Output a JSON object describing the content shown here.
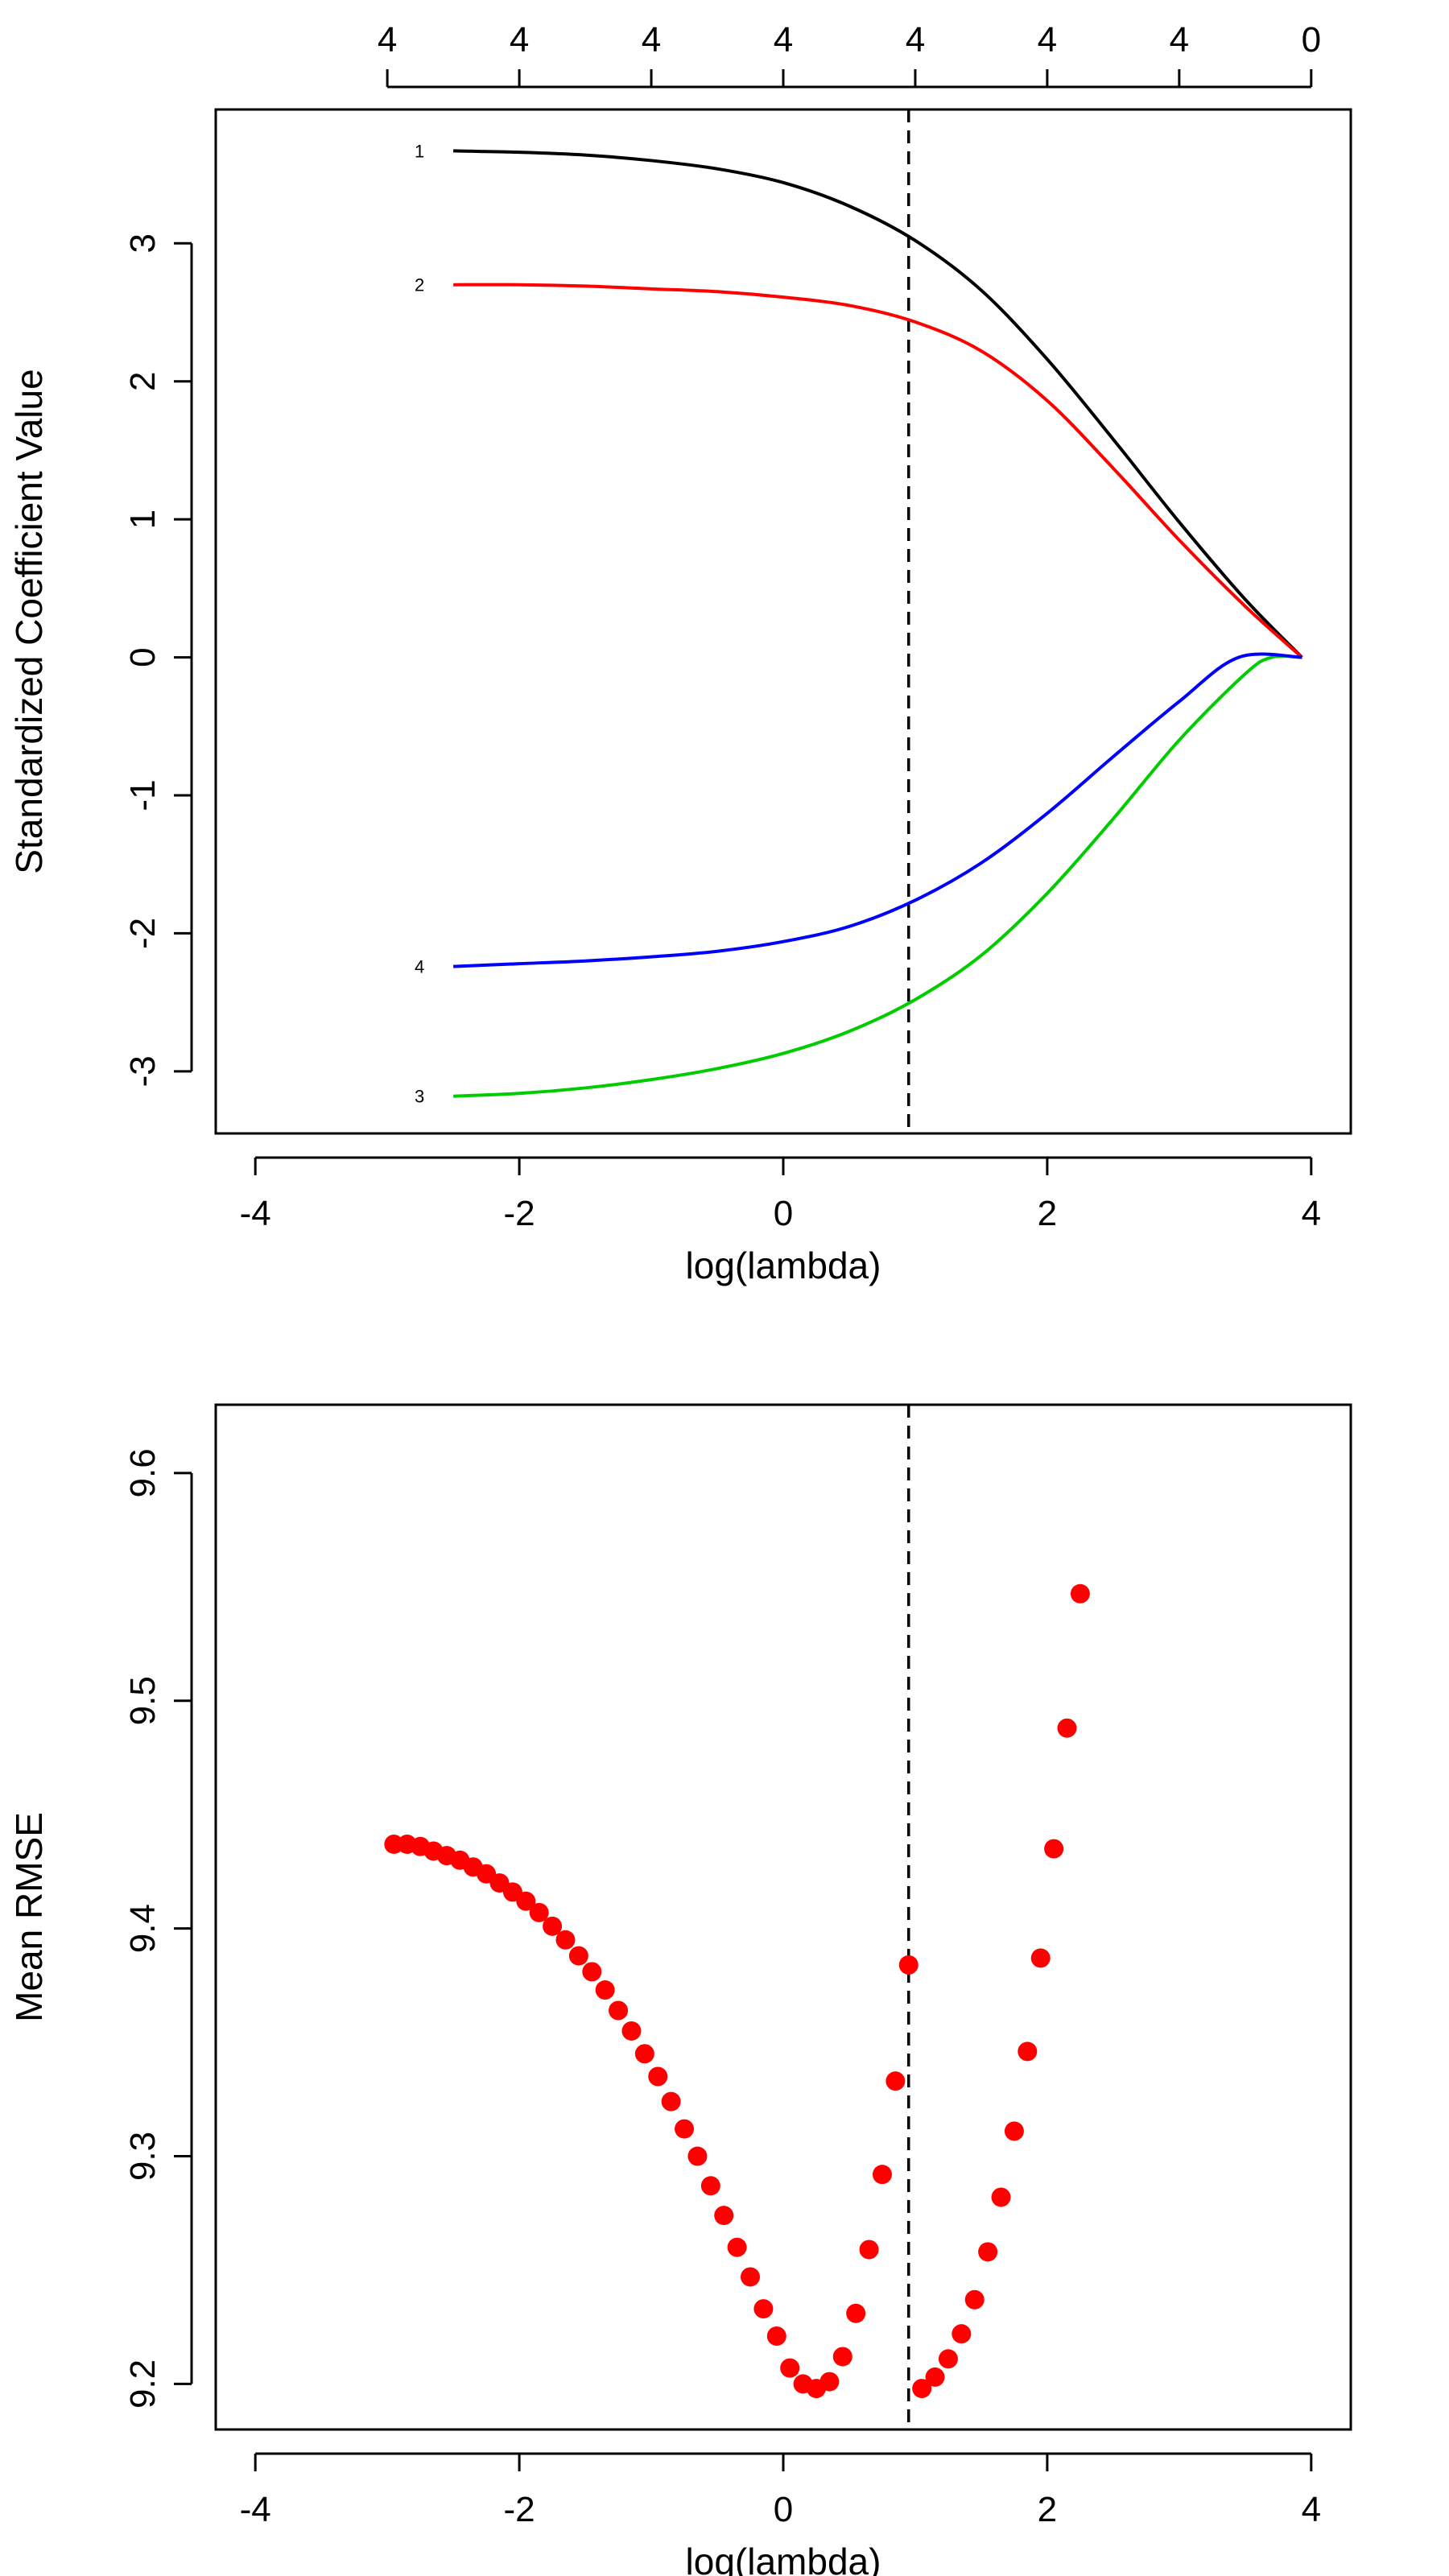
{
  "chart_data": [
    {
      "type": "line",
      "xlabel": "log(lambda)",
      "ylabel": "Standardized Coefficient Value",
      "xlim": [
        -4.3,
        4.3
      ],
      "ylim": [
        -3.45,
        3.97
      ],
      "xticks": [
        -4,
        -2,
        0,
        2,
        4
      ],
      "xtick_labels": [
        "-4",
        "-2",
        "0",
        "2",
        "4"
      ],
      "yticks": [
        -3,
        -2,
        -1,
        0,
        1,
        2,
        3
      ],
      "ytick_labels": [
        "-3",
        "-2",
        "-1",
        "0",
        "1",
        "2",
        "3"
      ],
      "top_axis": {
        "positions": [
          -3,
          -2,
          -1,
          0,
          1,
          2,
          3,
          4
        ],
        "labels": [
          "4",
          "4",
          "4",
          "4",
          "4",
          "4",
          "4",
          "0"
        ]
      },
      "vline": 0.95,
      "grid": false,
      "legend": "none",
      "series": [
        {
          "name": "1",
          "color": "#000000",
          "x": [
            -2.5,
            -2.0,
            -1.5,
            -1.0,
            -0.5,
            0.0,
            0.5,
            1.0,
            1.5,
            2.0,
            2.5,
            3.0,
            3.5,
            3.93
          ],
          "y": [
            3.67,
            3.66,
            3.64,
            3.6,
            3.54,
            3.44,
            3.27,
            3.02,
            2.66,
            2.16,
            1.58,
            0.98,
            0.42,
            0.0
          ]
        },
        {
          "name": "2",
          "color": "#ff0000",
          "x": [
            -2.5,
            -2.0,
            -1.5,
            -1.0,
            -0.5,
            0.0,
            0.5,
            1.0,
            1.5,
            2.0,
            2.5,
            3.0,
            3.5,
            3.93
          ],
          "y": [
            2.7,
            2.7,
            2.69,
            2.67,
            2.65,
            2.61,
            2.55,
            2.43,
            2.22,
            1.86,
            1.37,
            0.85,
            0.37,
            0.0
          ]
        },
        {
          "name": "3",
          "color": "#00cc00",
          "x": [
            -2.5,
            -2.0,
            -1.5,
            -1.0,
            -0.5,
            0.0,
            0.5,
            1.0,
            1.5,
            2.0,
            2.5,
            3.0,
            3.5,
            3.7,
            3.93
          ],
          "y": [
            -3.18,
            -3.16,
            -3.12,
            -3.06,
            -2.98,
            -2.87,
            -2.71,
            -2.48,
            -2.16,
            -1.71,
            -1.17,
            -0.6,
            -0.12,
            0.0,
            0.0
          ]
        },
        {
          "name": "4",
          "color": "#0000ff",
          "x": [
            -2.5,
            -2.0,
            -1.5,
            -1.0,
            -0.5,
            0.0,
            0.5,
            1.0,
            1.5,
            2.0,
            2.5,
            3.0,
            3.45,
            3.93
          ],
          "y": [
            -2.24,
            -2.22,
            -2.2,
            -2.17,
            -2.13,
            -2.06,
            -1.95,
            -1.76,
            -1.49,
            -1.13,
            -0.72,
            -0.32,
            0.0,
            0.0
          ]
        }
      ]
    },
    {
      "type": "scatter",
      "xlabel": "log(lambda)",
      "ylabel": "Mean RMSE",
      "xlim": [
        -4.3,
        4.3
      ],
      "ylim": [
        9.18,
        9.63
      ],
      "xticks": [
        -4,
        -2,
        0,
        2,
        4
      ],
      "xtick_labels": [
        "-4",
        "-2",
        "0",
        "2",
        "4"
      ],
      "yticks": [
        9.2,
        9.3,
        9.4,
        9.5,
        9.6
      ],
      "ytick_labels": [
        "9.2",
        "9.3",
        "9.4",
        "9.5",
        "9.6"
      ],
      "vline": 0.95,
      "grid": false,
      "legend": "none",
      "point_color": "#ff0000",
      "x": [
        -2.95,
        -2.85,
        -2.75,
        -2.65,
        -2.55,
        -2.45,
        -2.35,
        -2.25,
        -2.15,
        -2.05,
        -1.95,
        -1.85,
        -1.75,
        -1.65,
        -1.55,
        -1.45,
        -1.35,
        -1.25,
        -1.15,
        -1.05,
        -0.95,
        -0.85,
        -0.75,
        -0.65,
        -0.55,
        -0.45,
        -0.35,
        -0.25,
        -0.15,
        -0.05,
        0.05,
        0.15,
        0.25,
        0.35,
        0.45,
        0.55,
        0.65,
        0.75,
        0.85,
        0.95,
        1.05,
        1.15,
        1.25,
        1.35,
        1.45,
        1.55,
        1.65,
        1.75,
        1.85,
        1.95,
        2.05,
        2.15,
        2.25
      ],
      "y": [
        9.437,
        9.437,
        9.436,
        9.434,
        9.432,
        9.43,
        9.427,
        9.424,
        9.42,
        9.416,
        9.412,
        9.407,
        9.401,
        9.395,
        9.388,
        9.381,
        9.373,
        9.364,
        9.355,
        9.345,
        9.335,
        9.324,
        9.312,
        9.3,
        9.287,
        9.274,
        9.26,
        9.247,
        9.233,
        9.221,
        9.207,
        9.2,
        9.198,
        9.201,
        9.212,
        9.231,
        9.259,
        9.292,
        9.333,
        9.384,
        9.198,
        9.203,
        9.211,
        9.222,
        9.237,
        9.258,
        9.282,
        9.311,
        9.346,
        9.387,
        9.435,
        9.488,
        9.547
      ]
    }
  ]
}
